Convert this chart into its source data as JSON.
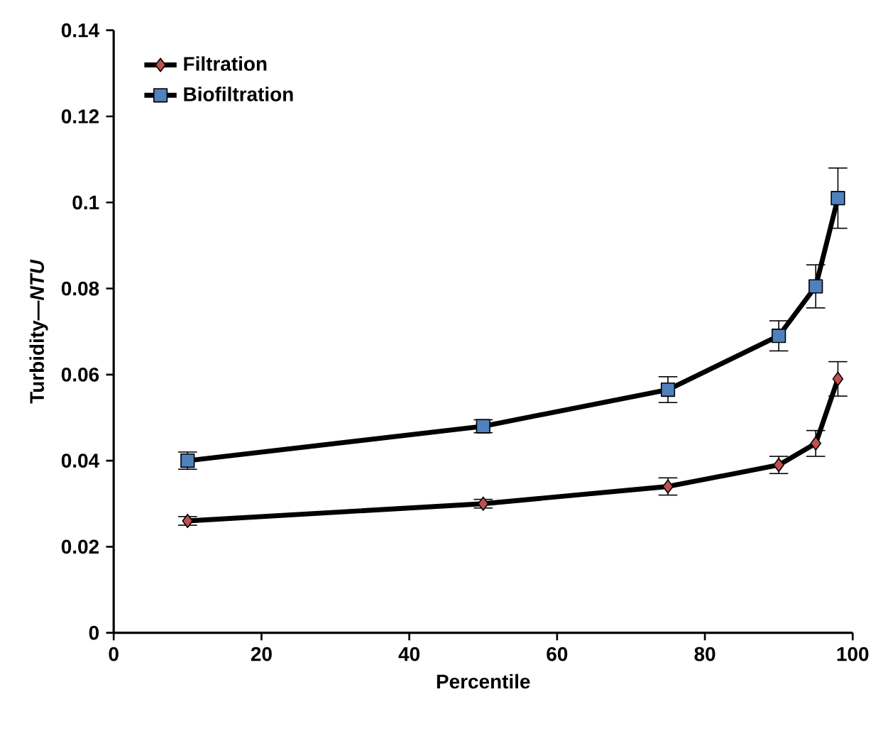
{
  "chart_data": {
    "type": "line",
    "xlabel": "Percentile",
    "ylabel": "Turbidity—*NTU*",
    "xlim": [
      0,
      100
    ],
    "xticks": [
      0,
      20,
      40,
      60,
      80,
      100
    ],
    "ylim": [
      0,
      0.14
    ],
    "yticks": [
      0,
      0.02,
      0.04,
      0.06,
      0.08,
      0.1,
      0.12,
      0.14
    ],
    "grid": false,
    "legend": "top left",
    "line_style": "solid",
    "series": [
      {
        "name": "Filtration",
        "color": "#c0504d",
        "marker": "diamond",
        "x": [
          10,
          50,
          75,
          90,
          95,
          98
        ],
        "values": [
          0.026,
          0.03,
          0.034,
          0.039,
          0.044,
          0.059
        ],
        "errors": [
          0.001,
          0.001,
          0.002,
          0.002,
          0.003,
          0.004
        ]
      },
      {
        "name": "Biofiltration",
        "color": "#4f81bd",
        "marker": "square",
        "x": [
          10,
          50,
          75,
          90,
          95,
          98
        ],
        "values": [
          0.04,
          0.048,
          0.0565,
          0.069,
          0.0805,
          0.101
        ],
        "errors": [
          0.002,
          0.0015,
          0.003,
          0.0035,
          0.005,
          0.007
        ]
      }
    ]
  }
}
